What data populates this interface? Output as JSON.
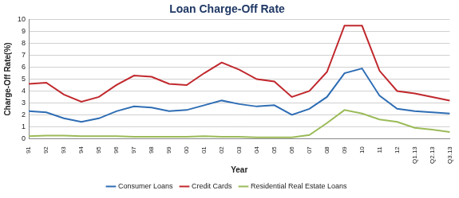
{
  "chart_data": {
    "type": "line",
    "title": "Loan Charge-Off Rate",
    "xlabel": "Year",
    "ylabel": "Charge-Off Rate(%)",
    "categories": [
      "91",
      "92",
      "93",
      "94",
      "95",
      "96",
      "97",
      "98",
      "99",
      "00",
      "01",
      "02",
      "03",
      "04",
      "05",
      "06",
      "07",
      "08",
      "09",
      "10",
      "11",
      "12",
      "Q1.13",
      "Q2.13",
      "Q3.13"
    ],
    "series": [
      {
        "name": "Consumer Loans",
        "color": "#2e6db4",
        "values": [
          2.3,
          2.2,
          1.7,
          1.4,
          1.7,
          2.3,
          2.7,
          2.6,
          2.3,
          2.4,
          2.8,
          3.2,
          2.9,
          2.7,
          2.8,
          2.0,
          2.5,
          3.5,
          5.5,
          5.9,
          3.6,
          2.5,
          2.3,
          2.2,
          2.1
        ]
      },
      {
        "name": "Credit Cards",
        "color": "#c0282d",
        "values": [
          4.6,
          4.7,
          3.7,
          3.1,
          3.5,
          4.5,
          5.3,
          5.2,
          4.6,
          4.5,
          5.5,
          6.4,
          5.8,
          5.0,
          4.8,
          3.5,
          4.0,
          5.6,
          9.5,
          9.5,
          5.7,
          4.0,
          3.8,
          3.5,
          3.2
        ]
      },
      {
        "name": "Residential Real Estate Loans",
        "color": "#9bbb59",
        "values": [
          0.2,
          0.25,
          0.25,
          0.2,
          0.2,
          0.2,
          0.15,
          0.15,
          0.15,
          0.15,
          0.2,
          0.15,
          0.15,
          0.1,
          0.1,
          0.1,
          0.3,
          1.3,
          2.4,
          2.1,
          1.6,
          1.4,
          0.9,
          0.75,
          0.55
        ]
      }
    ],
    "ylim": [
      0,
      10
    ],
    "yticks": [
      0,
      1,
      2,
      3,
      4,
      5,
      6,
      7,
      8,
      9,
      10
    ],
    "grid": true,
    "legend": "bottom"
  }
}
